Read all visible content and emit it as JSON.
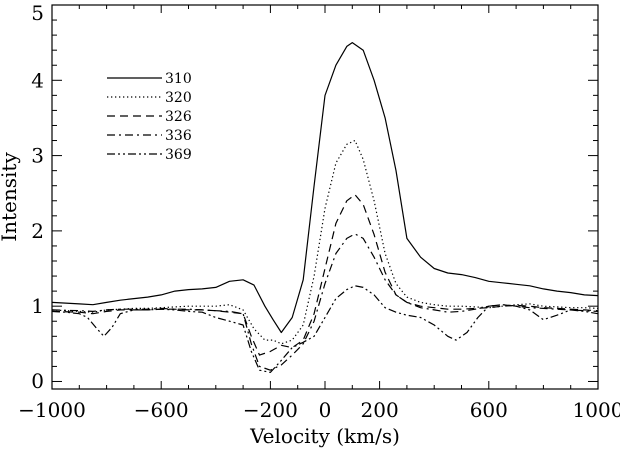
{
  "chart_data": {
    "type": "line",
    "title": "",
    "xlabel": "Velocity  (km/s)",
    "ylabel": "Intensity",
    "xlim": [
      -1000,
      1000
    ],
    "ylim": [
      -0.1,
      5.0
    ],
    "xticks": [
      -1000,
      -600,
      -200,
      0,
      200,
      600,
      1000
    ],
    "yticks": [
      0,
      1,
      2,
      3,
      4,
      5
    ],
    "grid": false,
    "legend_position": "top-left",
    "series": [
      {
        "name": "310",
        "dash": "solid",
        "x": [
          -1000,
          -900,
          -850,
          -800,
          -750,
          -700,
          -650,
          -600,
          -550,
          -500,
          -450,
          -400,
          -350,
          -300,
          -260,
          -220,
          -190,
          -160,
          -120,
          -80,
          -40,
          0,
          40,
          80,
          100,
          140,
          180,
          220,
          260,
          300,
          350,
          400,
          450,
          500,
          550,
          600,
          650,
          700,
          750,
          800,
          850,
          900,
          950,
          1000
        ],
        "values": [
          1.05,
          1.03,
          1.02,
          1.05,
          1.08,
          1.1,
          1.12,
          1.15,
          1.2,
          1.22,
          1.23,
          1.25,
          1.33,
          1.35,
          1.28,
          1.0,
          0.82,
          0.65,
          0.85,
          1.35,
          2.6,
          3.8,
          4.2,
          4.45,
          4.5,
          4.4,
          4.0,
          3.5,
          2.8,
          1.9,
          1.65,
          1.5,
          1.44,
          1.42,
          1.38,
          1.33,
          1.31,
          1.29,
          1.27,
          1.23,
          1.2,
          1.18,
          1.15,
          1.14
        ]
      },
      {
        "name": "320",
        "dash": "dotted",
        "x": [
          -1000,
          -900,
          -850,
          -800,
          -750,
          -700,
          -650,
          -600,
          -550,
          -500,
          -450,
          -400,
          -350,
          -300,
          -260,
          -220,
          -190,
          -160,
          -120,
          -80,
          -40,
          0,
          40,
          80,
          110,
          140,
          180,
          220,
          260,
          300,
          350,
          400,
          450,
          500,
          550,
          600,
          650,
          700,
          750,
          800,
          850,
          900,
          950,
          1000
        ],
        "values": [
          0.95,
          0.93,
          0.92,
          0.95,
          0.96,
          0.97,
          0.97,
          0.98,
          0.99,
          1.0,
          1.0,
          1.0,
          1.02,
          0.95,
          0.7,
          0.55,
          0.55,
          0.5,
          0.55,
          0.75,
          1.4,
          2.3,
          2.9,
          3.15,
          3.2,
          2.95,
          2.4,
          1.7,
          1.3,
          1.12,
          1.05,
          1.02,
          1.0,
          1.0,
          0.99,
          0.98,
          1.0,
          1.02,
          1.03,
          1.0,
          0.99,
          0.98,
          0.98,
          0.97
        ]
      },
      {
        "name": "326",
        "dash": "dashed",
        "x": [
          -1000,
          -900,
          -850,
          -800,
          -750,
          -700,
          -650,
          -600,
          -550,
          -500,
          -450,
          -400,
          -350,
          -300,
          -270,
          -240,
          -200,
          -160,
          -120,
          -80,
          -40,
          0,
          40,
          80,
          110,
          140,
          180,
          220,
          260,
          300,
          350,
          400,
          450,
          500,
          550,
          600,
          650,
          700,
          750,
          800,
          850,
          900,
          950,
          1000
        ],
        "values": [
          0.93,
          0.92,
          0.9,
          0.93,
          0.95,
          0.95,
          0.95,
          0.96,
          0.96,
          0.95,
          0.95,
          0.94,
          0.92,
          0.9,
          0.6,
          0.35,
          0.4,
          0.48,
          0.45,
          0.55,
          0.9,
          1.5,
          2.1,
          2.4,
          2.48,
          2.35,
          1.95,
          1.45,
          1.15,
          1.05,
          1.0,
          0.98,
          0.96,
          0.96,
          0.97,
          0.98,
          1.0,
          1.01,
          1.0,
          0.98,
          0.97,
          0.96,
          0.95,
          0.94
        ]
      },
      {
        "name": "336",
        "dash": "dashdot",
        "x": [
          -1000,
          -900,
          -850,
          -800,
          -750,
          -700,
          -650,
          -600,
          -550,
          -500,
          -450,
          -400,
          -350,
          -300,
          -270,
          -240,
          -200,
          -160,
          -120,
          -80,
          -40,
          0,
          40,
          80,
          110,
          140,
          180,
          220,
          260,
          300,
          350,
          400,
          450,
          500,
          550,
          600,
          650,
          700,
          750,
          800,
          850,
          900,
          950,
          1000
        ],
        "values": [
          0.95,
          0.94,
          0.93,
          0.95,
          0.96,
          0.96,
          0.96,
          0.97,
          0.96,
          0.96,
          0.95,
          0.94,
          0.93,
          0.9,
          0.5,
          0.2,
          0.15,
          0.22,
          0.35,
          0.5,
          0.8,
          1.3,
          1.7,
          1.9,
          1.96,
          1.9,
          1.65,
          1.35,
          1.15,
          1.05,
          0.98,
          0.95,
          0.92,
          0.93,
          0.96,
          1.0,
          1.02,
          1.0,
          0.98,
          0.97,
          0.96,
          0.95,
          0.94,
          0.93
        ]
      },
      {
        "name": "369",
        "dash": "dashdotdot",
        "x": [
          -1000,
          -950,
          -900,
          -870,
          -840,
          -810,
          -780,
          -750,
          -700,
          -650,
          -600,
          -550,
          -500,
          -450,
          -400,
          -350,
          -300,
          -270,
          -240,
          -200,
          -160,
          -120,
          -80,
          -40,
          0,
          40,
          80,
          110,
          140,
          180,
          220,
          260,
          300,
          350,
          400,
          450,
          480,
          520,
          560,
          600,
          650,
          700,
          750,
          800,
          850,
          900,
          950,
          1000
        ],
        "values": [
          0.93,
          0.92,
          0.9,
          0.85,
          0.72,
          0.6,
          0.72,
          0.9,
          0.95,
          0.95,
          0.96,
          0.95,
          0.93,
          0.92,
          0.85,
          0.8,
          0.75,
          0.4,
          0.15,
          0.12,
          0.28,
          0.45,
          0.52,
          0.6,
          0.85,
          1.1,
          1.22,
          1.27,
          1.25,
          1.15,
          0.98,
          0.92,
          0.88,
          0.85,
          0.75,
          0.6,
          0.55,
          0.65,
          0.85,
          1.0,
          1.02,
          1.0,
          0.95,
          0.82,
          0.88,
          0.95,
          0.93,
          0.9
        ]
      }
    ]
  }
}
